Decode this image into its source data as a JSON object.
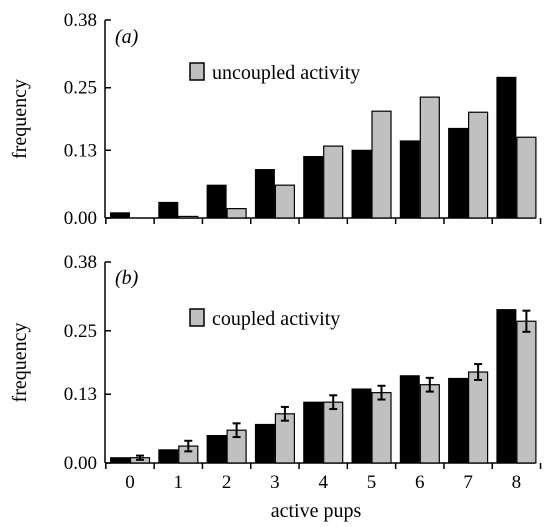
{
  "chart_data": [
    {
      "type": "bar",
      "panel_label": "(a)",
      "categories": [
        "0",
        "1",
        "2",
        "3",
        "4",
        "5",
        "6",
        "7",
        "8"
      ],
      "yticks": [
        "0.00",
        "0.13",
        "0.25",
        "0.38"
      ],
      "ylim": [
        0,
        0.38
      ],
      "ylabel": "frequency",
      "xlabel": "",
      "legend": {
        "label": "uncoupled activity",
        "position": "top-center"
      },
      "colors": {
        "black": "#000000",
        "grey": "#c0c0c0"
      },
      "series": [
        {
          "values": [
            0.01,
            0.03,
            0.063,
            0.093,
            0.118,
            0.13,
            0.148,
            0.172,
            0.27
          ]
        },
        {
          "name": "uncoupled activity",
          "values": [
            null,
            0.003,
            0.018,
            0.063,
            0.138,
            0.205,
            0.232,
            0.203,
            0.155
          ]
        }
      ]
    },
    {
      "type": "bar",
      "panel_label": "(b)",
      "categories": [
        "0",
        "1",
        "2",
        "3",
        "4",
        "5",
        "6",
        "7",
        "8"
      ],
      "yticks": [
        "0.00",
        "0.13",
        "0.25",
        "0.38"
      ],
      "ylim": [
        0,
        0.38
      ],
      "ylabel": "frequency",
      "xlabel": "active pups",
      "legend": {
        "label": "coupled activity",
        "position": "top-center"
      },
      "colors": {
        "black": "#000000",
        "grey": "#c0c0c0"
      },
      "series": [
        {
          "values": [
            0.01,
            0.025,
            0.052,
            0.073,
            0.115,
            0.14,
            0.165,
            0.16,
            0.29
          ]
        },
        {
          "name": "coupled activity",
          "values": [
            0.01,
            0.032,
            0.062,
            0.093,
            0.115,
            0.133,
            0.148,
            0.172,
            0.268
          ]
        }
      ],
      "error_bars": [
        0.004,
        0.01,
        0.013,
        0.013,
        0.013,
        0.013,
        0.013,
        0.015,
        0.02
      ]
    }
  ]
}
